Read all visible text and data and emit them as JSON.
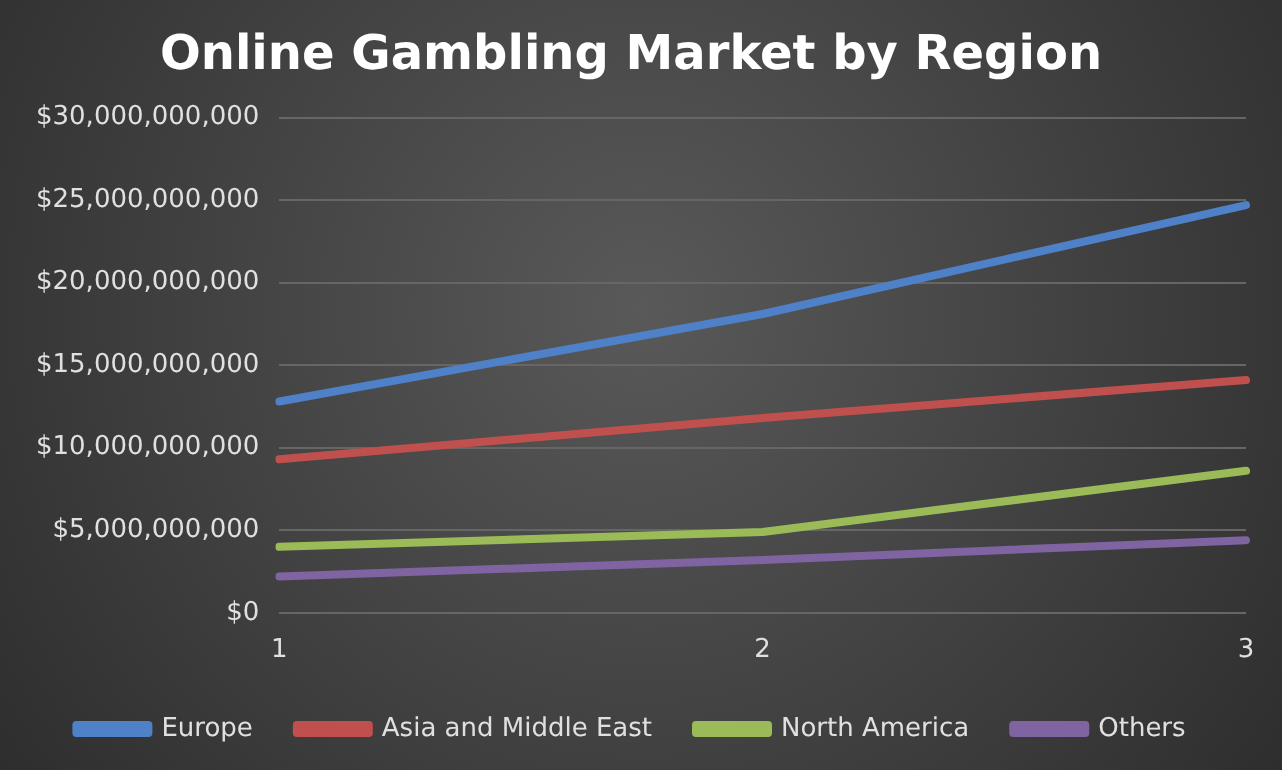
{
  "chart_data": {
    "type": "line",
    "title": "Online Gambling Market by Region",
    "categories": [
      "1",
      "2",
      "3"
    ],
    "series": [
      {
        "name": "Europe",
        "color": "#4f81c9",
        "values": [
          12800000000,
          18100000000,
          24700000000
        ]
      },
      {
        "name": "Asia and Middle East",
        "color": "#c0504d",
        "values": [
          9300000000,
          11800000000,
          14100000000
        ]
      },
      {
        "name": "North America",
        "color": "#9bbb59",
        "values": [
          4000000000,
          4900000000,
          8600000000
        ]
      },
      {
        "name": "Others",
        "color": "#8064a2",
        "values": [
          2200000000,
          3200000000,
          4400000000
        ]
      }
    ],
    "ylim": [
      0,
      30000000000
    ],
    "yticks": [
      {
        "value": 0,
        "label": "$0"
      },
      {
        "value": 5000000000,
        "label": "$5,000,000,000"
      },
      {
        "value": 10000000000,
        "label": "$10,000,000,000"
      },
      {
        "value": 15000000000,
        "label": "$15,000,000,000"
      },
      {
        "value": 20000000000,
        "label": "$20,000,000,000"
      },
      {
        "value": 25000000000,
        "label": "$25,000,000,000"
      },
      {
        "value": 30000000000,
        "label": "$30,000,000,000"
      }
    ],
    "grid": "y",
    "legend": "bottom",
    "marker": "none",
    "line_style": "solid"
  }
}
